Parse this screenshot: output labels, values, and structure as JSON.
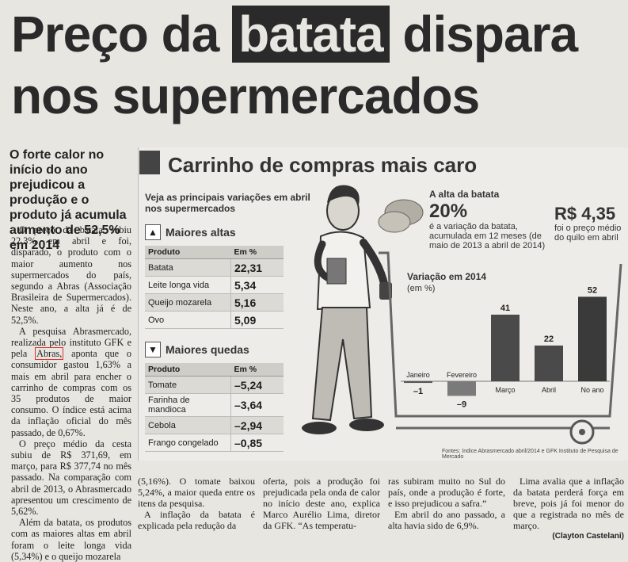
{
  "headline": {
    "line1_pre": "Preço da ",
    "line1_box": "batata",
    "line1_post": " dispara",
    "line2": "nos supermercados"
  },
  "lead": "O forte calor no início do ano prejudicou a produção e o produto já acumula aumento de 52,5% em 2014",
  "column1": {
    "p1": "O preço da batata subiu 22,3% em abril e foi, disparado, o produto com o maior aumento nos supermercados do país, segundo a Abras (Associação Brasileira de Supermercados). Neste ano, a alta já é de 52,5%.",
    "p2_a": "A pesquisa Abrasmercado, realizada pelo instituto GFK e pela",
    "p2_abras": "Abras,",
    "p2_b": "aponta que o consumidor gastou 1,63% a mais em abril para encher o carrinho de compras com os 35 produtos de maior consumo. O índice está acima da inflação oficial do mês passado, de 0,67%.",
    "p3": "O preço médio da cesta subiu de R$ 371,69, em março, para R$ 377,74 no mês passado. Na comparação com abril de 2013, o Abrasmercado apresentou um crescimento de 5,62%.",
    "p4": "Além da batata, os produtos com as maiores altas em abril foram o leite longa vida (5,34%) e o queijo mozarela"
  },
  "infographic": {
    "title": "Carrinho de compras mais caro",
    "subtitle": "Veja as principais variações em abril nos supermercados",
    "altas": {
      "heading_pre": "Maiores ",
      "heading_bold": "altas",
      "col_produto": "Produto",
      "col_em": "Em %",
      "rows": [
        {
          "name": "Batata",
          "value": "22,31"
        },
        {
          "name": "Leite longa vida",
          "value": "5,34"
        },
        {
          "name": "Queijo mozarela",
          "value": "5,16"
        },
        {
          "name": "Ovo",
          "value": "5,09"
        }
      ]
    },
    "quedas": {
      "heading_pre": "Maiores ",
      "heading_bold": "quedas",
      "col_produto": "Produto",
      "col_em": "Em %",
      "rows": [
        {
          "name": "Tomate",
          "value": "–5,24"
        },
        {
          "name": "Farinha de mandioca",
          "value": "–3,64"
        },
        {
          "name": "Cebola",
          "value": "–2,94"
        },
        {
          "name": "Frango congelado",
          "value": "–0,85"
        }
      ]
    },
    "batata_alta": {
      "label": "A alta da batata",
      "percent": "20%",
      "percent_desc": "é a variação da batata, acumulada em 12 meses (de maio de 2013 a abril de 2014)",
      "price": "R$ 4,35",
      "price_desc": "foi o preço médio do quilo em abril"
    },
    "source": "Fontes: índice Abrasmercado abril/2014 e GFK Instituto de Pesquisa de Mercado"
  },
  "chart_data": {
    "type": "bar",
    "title": "Variação em 2014",
    "ylabel": "(em %)",
    "categories": [
      "Janeiro",
      "Fevereiro",
      "Março",
      "Abril",
      "No ano"
    ],
    "values": [
      -1,
      -9,
      41,
      22,
      52
    ],
    "value_labels": [
      "–1",
      "–9",
      "41",
      "22",
      "52"
    ],
    "colors": [
      "#555555",
      "#7a7a7a",
      "#4a4a4a",
      "#4a4a4a",
      "#3a3a3a"
    ]
  },
  "bottom": {
    "c1": "(5,16%). O tomate baixou 5,24%, a maior queda entre os itens da pesquisa.",
    "c1b": "A inflação da batata é explicada pela redução da",
    "c2": "oferta, pois a produção foi prejudicada pela onda de calor no início deste ano, explica Marco Aurélio Lima, diretor da GFK. “As temperatu-",
    "c3": "ras subiram muito no Sul do país, onde a produção é forte, e isso prejudicou a safra.”",
    "c3b": "Em abril do ano passado, a alta havia sido de 6,9%.",
    "c4": "Lima avalia que a inflação da batata perderá força em breve, pois já foi menor do que a registrada no mês de março.",
    "byline": "(Clayton Castelani)"
  }
}
